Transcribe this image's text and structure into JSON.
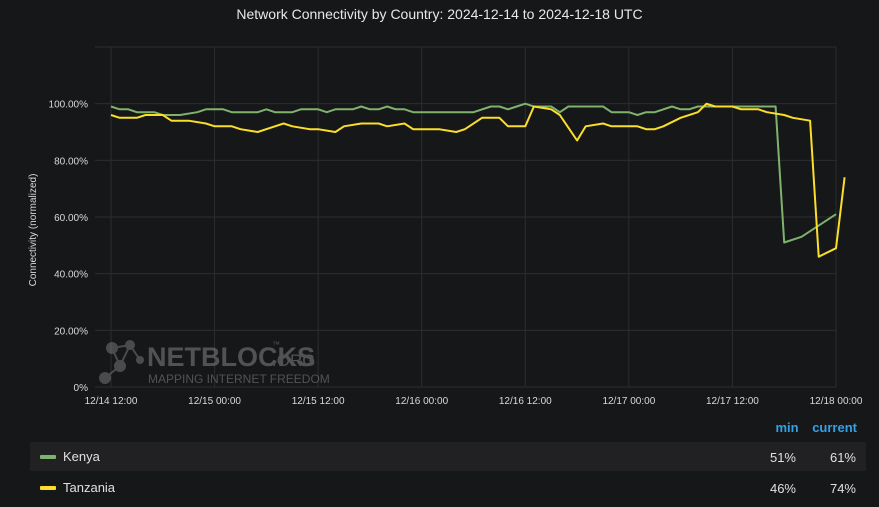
{
  "title": "Network Connectivity by Country: 2024-12-14 to 2024-12-18 UTC",
  "watermark": {
    "brand": "NETBLOCKS",
    "brand_suffix": ".ORG",
    "tm": "™",
    "tagline": "MAPPING INTERNET FREEDOM"
  },
  "legend": {
    "min_header": "min",
    "current_header": "current",
    "rows": [
      {
        "name": "Kenya",
        "min": "51%",
        "current": "61%",
        "color": "#7eb26d"
      },
      {
        "name": "Tanzania",
        "min": "46%",
        "current": "74%",
        "color": "#fade2a"
      }
    ]
  },
  "chart_data": {
    "type": "line",
    "title": "Network Connectivity by Country: 2024-12-14 to 2024-12-18 UTC",
    "xlabel": "",
    "ylabel": "Connectivity (normalized)",
    "x_ticks": [
      "12/14 12:00",
      "12/15 00:00",
      "12/15 12:00",
      "12/16 00:00",
      "12/16 12:00",
      "12/17 00:00",
      "12/17 12:00",
      "12/18 00:00"
    ],
    "y_ticks": [
      "0%",
      "20.00%",
      "40.00%",
      "60.00%",
      "80.00%",
      "100.00%"
    ],
    "ylim": [
      0,
      120
    ],
    "xlim": [
      "2024-12-14 12:00",
      "2024-12-18 00:00"
    ],
    "grid": true,
    "series": [
      {
        "name": "Kenya",
        "color": "#7eb26d",
        "points": [
          [
            "2024-12-14 12:00",
            99
          ],
          [
            "2024-12-14 13:00",
            98
          ],
          [
            "2024-12-14 14:00",
            98
          ],
          [
            "2024-12-14 15:00",
            97
          ],
          [
            "2024-12-14 16:00",
            97
          ],
          [
            "2024-12-14 17:00",
            97
          ],
          [
            "2024-12-14 18:00",
            96
          ],
          [
            "2024-12-14 20:00",
            96
          ],
          [
            "2024-12-14 22:00",
            97
          ],
          [
            "2024-12-14 23:00",
            98
          ],
          [
            "2024-12-15 01:00",
            98
          ],
          [
            "2024-12-15 02:00",
            97
          ],
          [
            "2024-12-15 05:00",
            97
          ],
          [
            "2024-12-15 06:00",
            98
          ],
          [
            "2024-12-15 07:00",
            97
          ],
          [
            "2024-12-15 09:00",
            97
          ],
          [
            "2024-12-15 10:00",
            98
          ],
          [
            "2024-12-15 12:00",
            98
          ],
          [
            "2024-12-15 13:00",
            97
          ],
          [
            "2024-12-15 14:00",
            98
          ],
          [
            "2024-12-15 16:00",
            98
          ],
          [
            "2024-12-15 17:00",
            99
          ],
          [
            "2024-12-15 18:00",
            98
          ],
          [
            "2024-12-15 19:00",
            98
          ],
          [
            "2024-12-15 20:00",
            99
          ],
          [
            "2024-12-15 21:00",
            98
          ],
          [
            "2024-12-15 22:00",
            98
          ],
          [
            "2024-12-15 23:00",
            97
          ],
          [
            "2024-12-16 02:00",
            97
          ],
          [
            "2024-12-16 05:00",
            97
          ],
          [
            "2024-12-16 06:00",
            97
          ],
          [
            "2024-12-16 08:00",
            99
          ],
          [
            "2024-12-16 09:00",
            99
          ],
          [
            "2024-12-16 10:00",
            98
          ],
          [
            "2024-12-16 11:00",
            99
          ],
          [
            "2024-12-16 12:00",
            100
          ],
          [
            "2024-12-16 13:00",
            99
          ],
          [
            "2024-12-16 15:00",
            99
          ],
          [
            "2024-12-16 16:00",
            97
          ],
          [
            "2024-12-16 17:00",
            99
          ],
          [
            "2024-12-16 21:00",
            99
          ],
          [
            "2024-12-16 22:00",
            97
          ],
          [
            "2024-12-17 00:00",
            97
          ],
          [
            "2024-12-17 01:00",
            96
          ],
          [
            "2024-12-17 02:00",
            97
          ],
          [
            "2024-12-17 03:00",
            97
          ],
          [
            "2024-12-17 05:00",
            99
          ],
          [
            "2024-12-17 06:00",
            98
          ],
          [
            "2024-12-17 07:00",
            98
          ],
          [
            "2024-12-17 08:00",
            99
          ],
          [
            "2024-12-17 10:00",
            99
          ],
          [
            "2024-12-17 12:00",
            99
          ],
          [
            "2024-12-17 16:00",
            99
          ],
          [
            "2024-12-17 17:00",
            99
          ],
          [
            "2024-12-17 18:00",
            51
          ],
          [
            "2024-12-17 20:00",
            53
          ],
          [
            "2024-12-17 21:00",
            55
          ],
          [
            "2024-12-18 00:00",
            61
          ]
        ]
      },
      {
        "name": "Tanzania",
        "color": "#fade2a",
        "points": [
          [
            "2024-12-14 12:00",
            96
          ],
          [
            "2024-12-14 13:00",
            95
          ],
          [
            "2024-12-14 15:00",
            95
          ],
          [
            "2024-12-14 16:00",
            96
          ],
          [
            "2024-12-14 18:00",
            96
          ],
          [
            "2024-12-14 19:00",
            94
          ],
          [
            "2024-12-14 21:00",
            94
          ],
          [
            "2024-12-14 23:00",
            93
          ],
          [
            "2024-12-15 00:00",
            92
          ],
          [
            "2024-12-15 02:00",
            92
          ],
          [
            "2024-12-15 03:00",
            91
          ],
          [
            "2024-12-15 05:00",
            90
          ],
          [
            "2024-12-15 07:00",
            92
          ],
          [
            "2024-12-15 08:00",
            93
          ],
          [
            "2024-12-15 09:00",
            92
          ],
          [
            "2024-12-15 11:00",
            91
          ],
          [
            "2024-12-15 12:00",
            91
          ],
          [
            "2024-12-15 14:00",
            90
          ],
          [
            "2024-12-15 15:00",
            92
          ],
          [
            "2024-12-15 17:00",
            93
          ],
          [
            "2024-12-15 19:00",
            93
          ],
          [
            "2024-12-15 20:00",
            92
          ],
          [
            "2024-12-15 22:00",
            93
          ],
          [
            "2024-12-15 23:00",
            91
          ],
          [
            "2024-12-16 01:00",
            91
          ],
          [
            "2024-12-16 02:00",
            91
          ],
          [
            "2024-12-16 04:00",
            90
          ],
          [
            "2024-12-16 05:00",
            91
          ],
          [
            "2024-12-16 07:00",
            95
          ],
          [
            "2024-12-16 09:00",
            95
          ],
          [
            "2024-12-16 10:00",
            92
          ],
          [
            "2024-12-16 12:00",
            92
          ],
          [
            "2024-12-16 13:00",
            99
          ],
          [
            "2024-12-16 15:00",
            98
          ],
          [
            "2024-12-16 16:00",
            96
          ],
          [
            "2024-12-16 18:00",
            87
          ],
          [
            "2024-12-16 19:00",
            92
          ],
          [
            "2024-12-16 21:00",
            93
          ],
          [
            "2024-12-16 22:00",
            92
          ],
          [
            "2024-12-17 01:00",
            92
          ],
          [
            "2024-12-17 02:00",
            91
          ],
          [
            "2024-12-17 03:00",
            91
          ],
          [
            "2024-12-17 04:00",
            92
          ],
          [
            "2024-12-17 06:00",
            95
          ],
          [
            "2024-12-17 08:00",
            97
          ],
          [
            "2024-12-17 09:00",
            100
          ],
          [
            "2024-12-17 10:00",
            99
          ],
          [
            "2024-12-17 12:00",
            99
          ],
          [
            "2024-12-17 13:00",
            98
          ],
          [
            "2024-12-17 15:00",
            98
          ],
          [
            "2024-12-17 16:00",
            97
          ],
          [
            "2024-12-17 18:00",
            96
          ],
          [
            "2024-12-17 19:00",
            95
          ],
          [
            "2024-12-17 21:00",
            94
          ],
          [
            "2024-12-17 22:00",
            46
          ],
          [
            "2024-12-18 00:00",
            49
          ],
          [
            "2024-12-18 01:00",
            74
          ]
        ]
      }
    ]
  }
}
